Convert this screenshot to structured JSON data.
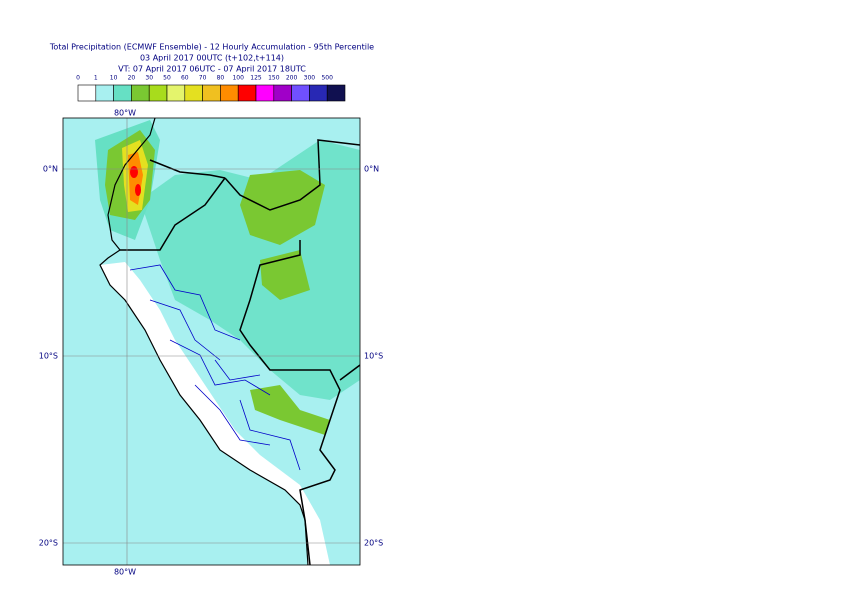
{
  "title": {
    "line1": "Total Precipitation (ECMWF Ensemble) - 12 Hourly Accumulation - 95th Percentile",
    "line2": "03 April 2017 00UTC (t+102,t+114)",
    "line3": "VT: 07 April 2017 06UTC - 07 April 2017 18UTC"
  },
  "legend": {
    "bounds": [
      0,
      1,
      10,
      20,
      30,
      50,
      60,
      70,
      80,
      100,
      125,
      150,
      200,
      300,
      500
    ],
    "colors": [
      "#ffffff",
      "#a8f0f0",
      "#66e0c4",
      "#7ac832",
      "#a8dc1c",
      "#e4f46c",
      "#e4e020",
      "#f0c020",
      "#ff8c00",
      "#ff0000",
      "#ff00ff",
      "#a000c8",
      "#7050ff",
      "#2828b4",
      "#101050"
    ]
  },
  "axes": {
    "lon": [
      "80°W"
    ],
    "lat": [
      "0°N",
      "10°S",
      "20°S"
    ]
  }
}
